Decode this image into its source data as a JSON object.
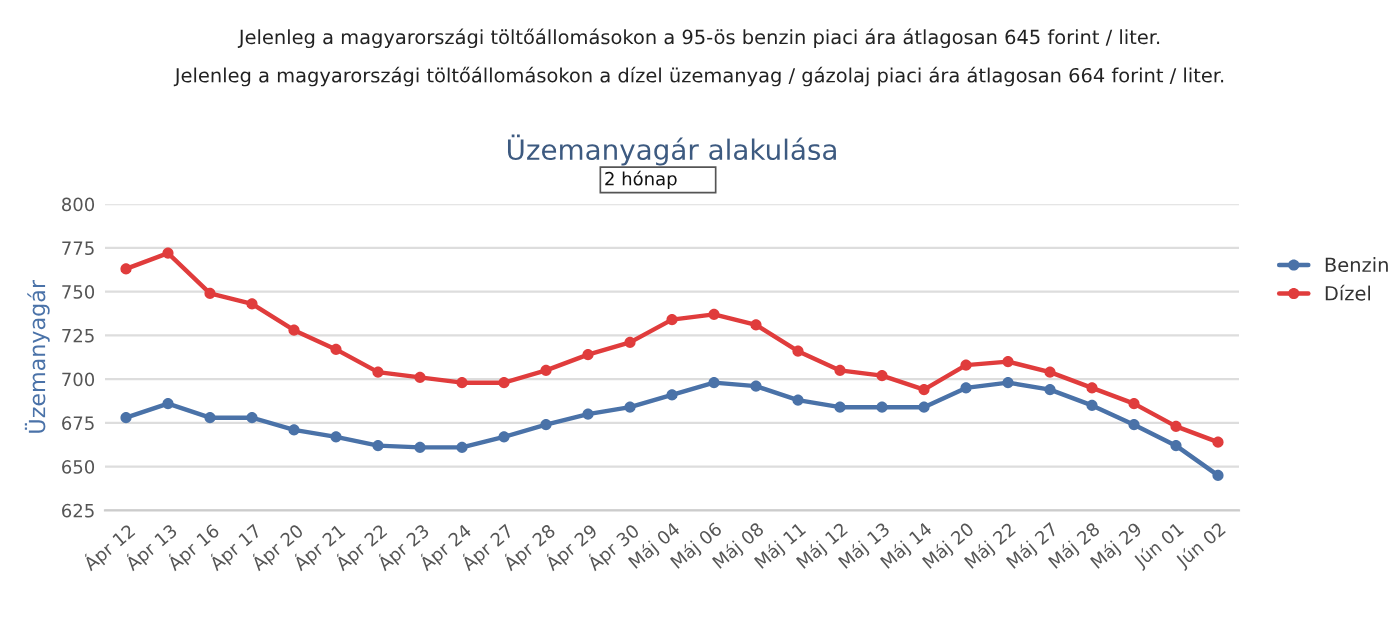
{
  "chart_data": {
    "type": "line",
    "title": "Üzemanyagár alakulása",
    "ylabel": "Üzemanyagár",
    "annotations": [
      "Jelenleg a magyarországi töltőállomásokon a 95-ös benzin piaci ára átlagosan 645 forint / liter.",
      "Jelenleg a magyarországi töltőállomásokon a dízel üzemanyag / gázolaj piaci ára átlagosan 664 forint / liter.",
      "2 hónap"
    ],
    "categories": [
      "Ápr 12",
      "Ápr 13",
      "Ápr 16",
      "Ápr 17",
      "Ápr 20",
      "Ápr 21",
      "Ápr 22",
      "Ápr 23",
      "Ápr 24",
      "Ápr 27",
      "Ápr 28",
      "Ápr 29",
      "Ápr 30",
      "Máj 04",
      "Máj 06",
      "Máj 08",
      "Máj 11",
      "Máj 12",
      "Máj 13",
      "Máj 14",
      "Máj 20",
      "Máj 22",
      "Máj 27",
      "Máj 28",
      "Máj 29",
      "Jún 01",
      "Jún 02"
    ],
    "series": [
      {
        "name": "Benzin",
        "color": "#4a72a8",
        "values": [
          678,
          686,
          678,
          678,
          671,
          667,
          662,
          661,
          661,
          667,
          674,
          680,
          684,
          691,
          698,
          696,
          688,
          684,
          684,
          684,
          695,
          698,
          694,
          685,
          674,
          662,
          645
        ]
      },
      {
        "name": "Dízel",
        "color": "#e03c3c",
        "values": [
          763,
          772,
          749,
          743,
          728,
          717,
          704,
          701,
          698,
          698,
          705,
          714,
          721,
          734,
          737,
          731,
          716,
          705,
          702,
          694,
          708,
          710,
          704,
          695,
          686,
          673,
          664
        ]
      }
    ],
    "ylim": [
      625,
      800
    ],
    "yticks": [
      625,
      650,
      675,
      700,
      725,
      750,
      775,
      800
    ],
    "grid": "y",
    "legend": "right",
    "marker": "circle",
    "line_style": "solid"
  }
}
